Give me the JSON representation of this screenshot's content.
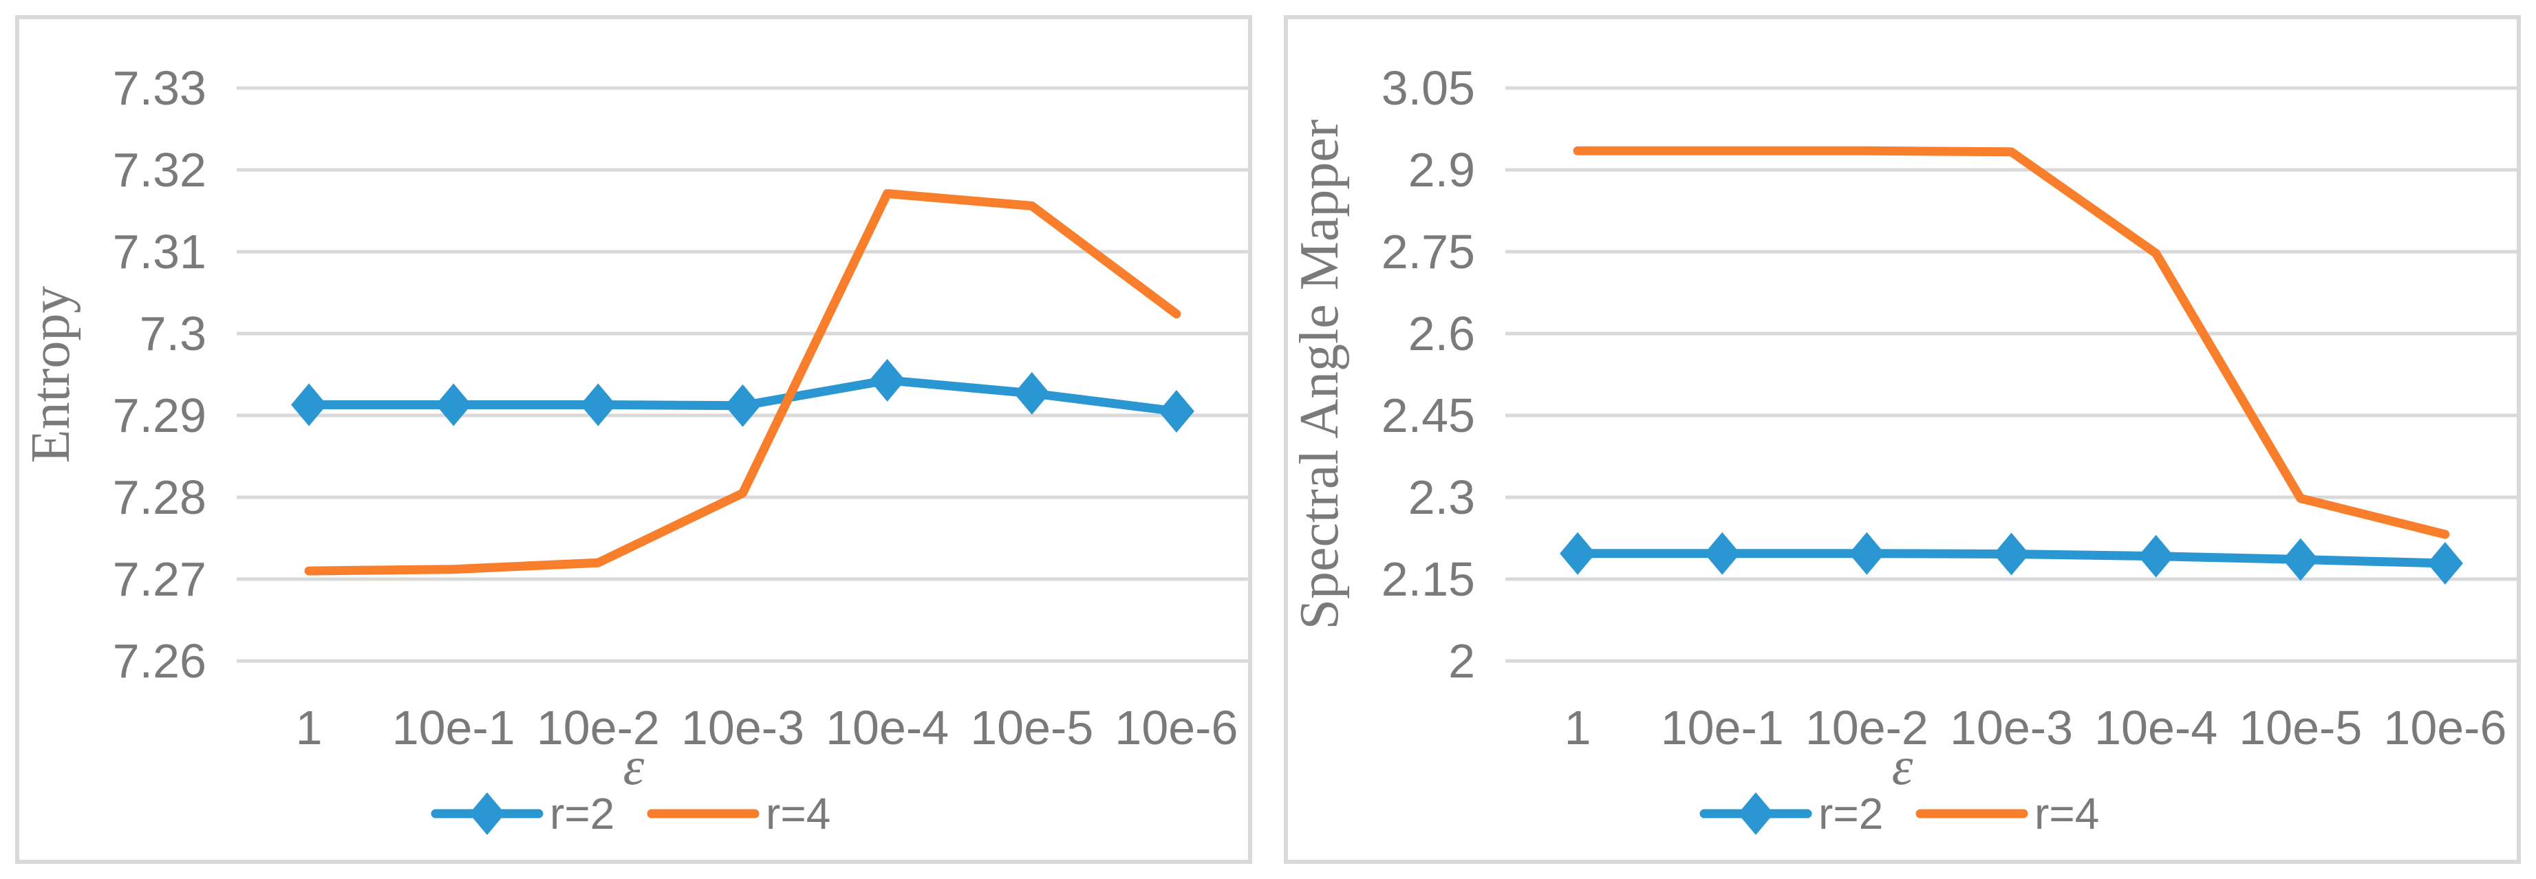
{
  "page": {
    "background": "#FFFFFF"
  },
  "colors": {
    "grid": "#D9D9D9",
    "panel_border": "#D9D9D9",
    "text": "#7A7A7A",
    "plot_background": "#FFFFFF",
    "series_blue": "#2A96D2",
    "series_orange": "#F87E2C"
  },
  "chart_data": [
    {
      "type": "line",
      "title": "",
      "xlabel": "ε",
      "ylabel": "Entropy",
      "categories": [
        "1",
        "10e-1",
        "10e-2",
        "10e-3",
        "10e-4",
        "10e-5",
        "10e-6"
      ],
      "yticks": [
        "7.33",
        "7.32",
        "7.31",
        "7.3",
        "7.29",
        "7.28",
        "7.27",
        "7.26"
      ],
      "ylim": [
        7.26,
        7.33
      ],
      "grid": true,
      "legend_position": "bottom",
      "series": [
        {
          "name": "r=2",
          "color": "#2A96D2",
          "marker": "diamond",
          "values": [
            7.2913,
            7.2913,
            7.2913,
            7.2912,
            7.2943,
            7.2927,
            7.2905
          ]
        },
        {
          "name": "r=4",
          "color": "#F87E2C",
          "marker": "none",
          "values": [
            7.271,
            7.2712,
            7.272,
            7.2805,
            7.3171,
            7.3156,
            7.3024
          ]
        }
      ]
    },
    {
      "type": "line",
      "title": "",
      "xlabel": "ε",
      "ylabel": "Spectral Angle Mapper",
      "categories": [
        "1",
        "10e-1",
        "10e-2",
        "10e-3",
        "10e-4",
        "10e-5",
        "10e-6"
      ],
      "yticks": [
        "3.05",
        "2.9",
        "2.75",
        "2.6",
        "2.45",
        "2.3",
        "2.15",
        "2"
      ],
      "ylim": [
        2,
        3.05
      ],
      "grid": true,
      "legend_position": "bottom",
      "series": [
        {
          "name": "r=2",
          "color": "#2A96D2",
          "marker": "diamond",
          "values": [
            2.197,
            2.197,
            2.197,
            2.196,
            2.192,
            2.186,
            2.179
          ]
        },
        {
          "name": "r=4",
          "color": "#F87E2C",
          "marker": "none",
          "values": [
            2.935,
            2.935,
            2.935,
            2.933,
            2.747,
            2.298,
            2.232
          ]
        }
      ]
    }
  ]
}
